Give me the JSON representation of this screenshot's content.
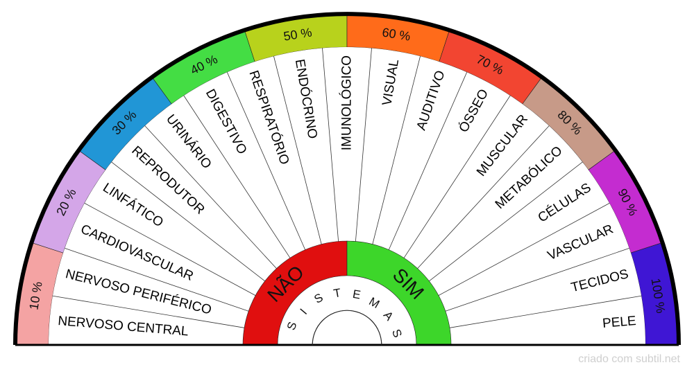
{
  "percent_ring": [
    {
      "label": "10 %",
      "color": "#f4a3a3"
    },
    {
      "label": "20 %",
      "color": "#d4a6e8"
    },
    {
      "label": "30 %",
      "color": "#2196d6"
    },
    {
      "label": "40 %",
      "color": "#44dd44"
    },
    {
      "label": "50 %",
      "color": "#b8d21c"
    },
    {
      "label": "60 %",
      "color": "#ff6b1a"
    },
    {
      "label": "70 %",
      "color": "#f24531"
    },
    {
      "label": "80 %",
      "color": "#c79a88"
    },
    {
      "label": "90 %",
      "color": "#c42cd0"
    },
    {
      "label": "100 %",
      "color": "#3f16d4"
    }
  ],
  "systems": [
    "NERVOSO CENTRAL",
    "NERVOSO PERIFÉRICO",
    "CARDIOVASCULAR",
    "LINFÁTICO",
    "REPRODUTOR",
    "URINÁRIO",
    "DIGESTIVO",
    "RESPIRATÓRIO",
    "ENDÓCRINO",
    "IMUNOLÓGICO",
    "VISUAL",
    "AUDITIVO",
    "ÓSSEO",
    "MUSCULAR",
    "METABÓLICO",
    "CÉLULAS",
    "VASCULAR",
    "TECIDOS",
    "PELE"
  ],
  "answer_no": {
    "label": "NÃO",
    "color": "#e00f0f"
  },
  "answer_yes": {
    "label": "SIM",
    "color": "#3dd62a"
  },
  "center_label": "SISTEMAS",
  "footer": "criado com subtil.net"
}
